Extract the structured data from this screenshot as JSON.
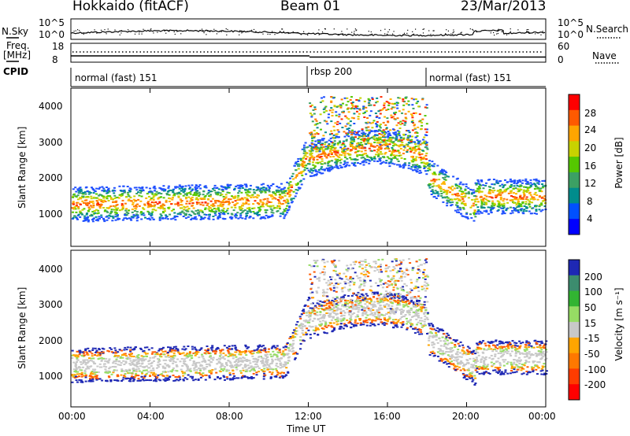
{
  "header": {
    "station": "Hokkaido (fitACF)",
    "beam": "Beam 01",
    "date": "23/Mar/2013"
  },
  "noise_panel": {
    "left_label": "N.Sky",
    "right_label": "N.Search",
    "left_ticks": [
      "10^5",
      "10^0"
    ],
    "right_ticks": [
      "10^5",
      "10^0"
    ]
  },
  "freq_panel": {
    "left_label_1": "Freq.",
    "left_label_2": "[MHz]",
    "left_ticks": [
      "18",
      "8"
    ],
    "right_label": "Nave",
    "right_ticks": [
      "60",
      "0"
    ]
  },
  "cpid_panel": {
    "label": "CPID",
    "segments": [
      {
        "name": "normal (fast) 151"
      },
      {
        "name": "rbsp 200"
      },
      {
        "name": "normal (fast) 151"
      }
    ]
  },
  "chart_data": [
    {
      "type": "heatmap",
      "ylabel": "Slant Range [km]",
      "yticks": [
        "4000",
        "3000",
        "2000",
        "1000"
      ],
      "ylim": [
        500,
        4500
      ],
      "colorbar_label": "Power [dB]",
      "colorbar_ticks": [
        "28",
        "24",
        "20",
        "16",
        "12",
        "8",
        "4"
      ],
      "colorbar_colors": [
        "#ff0000",
        "#ff5a00",
        "#ffa500",
        "#c8d200",
        "#55c800",
        "#3ca064",
        "#008c8c",
        "#0050ff",
        "#0000ff"
      ]
    },
    {
      "type": "heatmap",
      "ylabel": "Slant Range [km]",
      "yticks": [
        "4000",
        "3000",
        "2000",
        "1000"
      ],
      "ylim": [
        500,
        4500
      ],
      "colorbar_label": "Velocity [m s⁻¹]",
      "colorbar_ticks": [
        "200",
        "100",
        "50",
        "15",
        "-15",
        "-50",
        "-100",
        "-200"
      ],
      "colorbar_colors": [
        "#1e28b4",
        "#3c8c6e",
        "#32b432",
        "#96dc64",
        "#c8c8c8",
        "#ffa500",
        "#ff7800",
        "#ff3c00",
        "#ff0000"
      ]
    }
  ],
  "time_axis": {
    "label": "Time UT",
    "ticks": [
      "00:00",
      "04:00",
      "08:00",
      "12:00",
      "16:00",
      "20:00",
      "00:00"
    ]
  }
}
